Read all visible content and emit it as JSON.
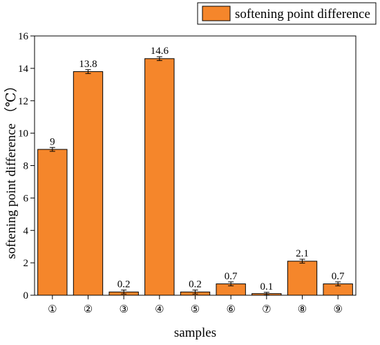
{
  "chart_data": {
    "type": "bar",
    "categories": [
      "①",
      "②",
      "③",
      "④",
      "⑤",
      "⑥",
      "⑦",
      "⑧",
      "⑨"
    ],
    "series": [
      {
        "name": "softening point difference",
        "values": [
          9,
          13.8,
          0.2,
          14.6,
          0.2,
          0.7,
          0.1,
          2.1,
          0.7
        ],
        "errors": [
          0.12,
          0.12,
          0.12,
          0.12,
          0.12,
          0.12,
          0.08,
          0.12,
          0.12
        ]
      }
    ],
    "data_labels": [
      "9",
      "13.8",
      "0.2",
      "14.6",
      "0.2",
      "0.7",
      "0.1",
      "2.1",
      "0.7"
    ],
    "xlabel": "samples",
    "ylabel": "softening point difference （℃）",
    "ylim": [
      0,
      16
    ],
    "yticks": [
      0,
      2,
      4,
      6,
      8,
      10,
      12,
      14,
      16
    ],
    "grid": false,
    "legend_position": "top-right",
    "colors": {
      "bar_fill": "#F5862B",
      "bar_edge": "#000000",
      "axis": "#000000"
    }
  }
}
